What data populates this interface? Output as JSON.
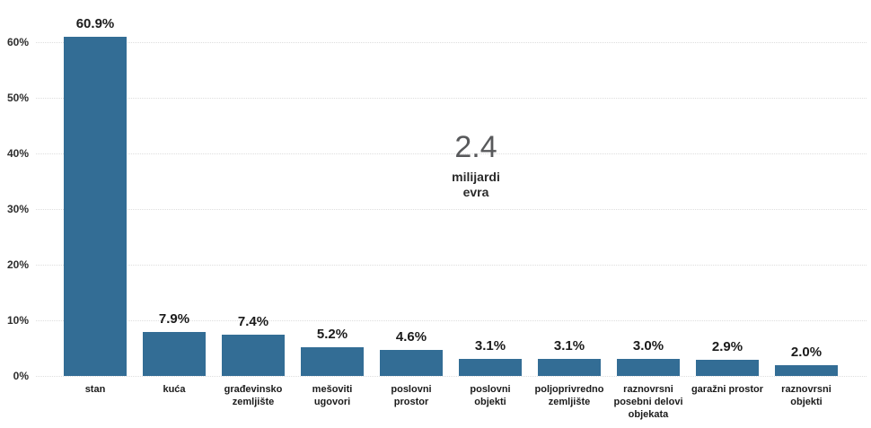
{
  "chart_data": {
    "type": "bar",
    "title": "",
    "xlabel": "",
    "ylabel": "",
    "categories": [
      "stan",
      "kuća",
      "građevinsko zemljište",
      "mešoviti ugovori",
      "poslovni prostor",
      "poslovni objekti",
      "poljoprivredno zemljište",
      "raznovrsni posebni delovi objekata",
      "garažni prostor",
      "raznovrsni objekti"
    ],
    "category_lines": [
      [
        "stan"
      ],
      [
        "kuća"
      ],
      [
        "građevinsko",
        "zemljište"
      ],
      [
        "mešoviti",
        "ugovori"
      ],
      [
        "poslovni",
        "prostor"
      ],
      [
        "poslovni",
        "objekti"
      ],
      [
        "poljoprivredno",
        "zemljište"
      ],
      [
        "raznovrsni",
        "posebni delovi",
        "objekata"
      ],
      [
        "garažni prostor"
      ],
      [
        "raznovrsni",
        "objekti"
      ]
    ],
    "values": [
      60.9,
      7.9,
      7.4,
      5.2,
      4.6,
      3.1,
      3.1,
      3.0,
      2.9,
      2.0
    ],
    "value_labels": [
      "60.9%",
      "7.9%",
      "7.4%",
      "5.2%",
      "4.6%",
      "3.1%",
      "3.1%",
      "3.0%",
      "2.9%",
      "2.0%"
    ],
    "yticks": [
      {
        "value": 0,
        "label": "0%"
      },
      {
        "value": 10,
        "label": "10%"
      },
      {
        "value": 20,
        "label": "20%"
      },
      {
        "value": 30,
        "label": "30%"
      },
      {
        "value": 40,
        "label": "40%"
      },
      {
        "value": 50,
        "label": "50%"
      },
      {
        "value": 60,
        "label": "60%"
      }
    ],
    "ylim": [
      0,
      64
    ],
    "grid": "horizontal-dotted",
    "legend": "none",
    "bar_color": "#336d95",
    "annotation": {
      "value": "2.4",
      "value_color": "#58595b",
      "unit_lines": [
        "milijardi",
        "evra"
      ]
    }
  }
}
